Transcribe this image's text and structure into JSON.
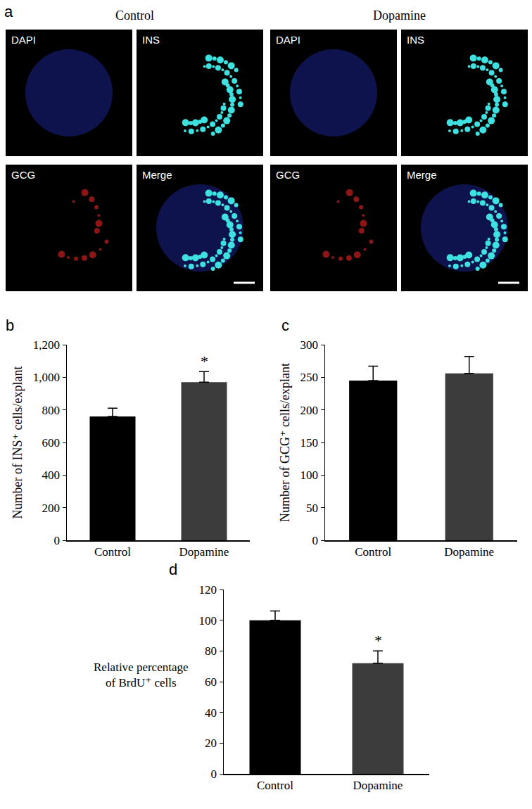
{
  "panel_a": {
    "label": "a",
    "groups": [
      {
        "title": "Control",
        "channels": [
          "DAPI",
          "INS",
          "GCG",
          "Merge"
        ]
      },
      {
        "title": "Dopamine",
        "channels": [
          "DAPI",
          "INS",
          "GCG",
          "Merge"
        ]
      }
    ]
  },
  "chart_data": [
    {
      "type": "bar",
      "label": "b",
      "categories": [
        "Control",
        "Dopamine"
      ],
      "values": [
        760,
        970
      ],
      "errors": [
        50,
        65
      ],
      "colors": [
        "#000000",
        "#3c3c3c"
      ],
      "ylabel": "Number of INS⁺ cells/explant",
      "ylim": [
        0,
        1200
      ],
      "yticks": [
        0,
        200,
        400,
        600,
        800,
        {
          "value": 1000,
          "label": "1,000"
        },
        {
          "value": 1200,
          "label": "1,200"
        }
      ],
      "grid": false,
      "annotations": [
        {
          "category": "Dopamine",
          "text": "*"
        }
      ]
    },
    {
      "type": "bar",
      "label": "c",
      "categories": [
        "Control",
        "Dopamine"
      ],
      "values": [
        245,
        256
      ],
      "errors": [
        22,
        26
      ],
      "colors": [
        "#000000",
        "#3c3c3c"
      ],
      "ylabel": "Number of GCG⁺ cells/explant",
      "ylim": [
        0,
        300
      ],
      "yticks": [
        0,
        50,
        100,
        150,
        200,
        250,
        300
      ],
      "grid": false,
      "annotations": []
    },
    {
      "type": "bar",
      "label": "d",
      "categories": [
        "Control",
        "Dopamine"
      ],
      "values": [
        100,
        72
      ],
      "errors": [
        6,
        8
      ],
      "colors": [
        "#000000",
        "#3c3c3c"
      ],
      "ylabel": [
        "Relative percentage",
        "of BrdU⁺ cells"
      ],
      "ylim": [
        0,
        120
      ],
      "yticks": [
        0,
        20,
        40,
        60,
        80,
        100,
        120
      ],
      "grid": false,
      "annotations": [
        {
          "category": "Dopamine",
          "text": "*"
        }
      ]
    }
  ]
}
